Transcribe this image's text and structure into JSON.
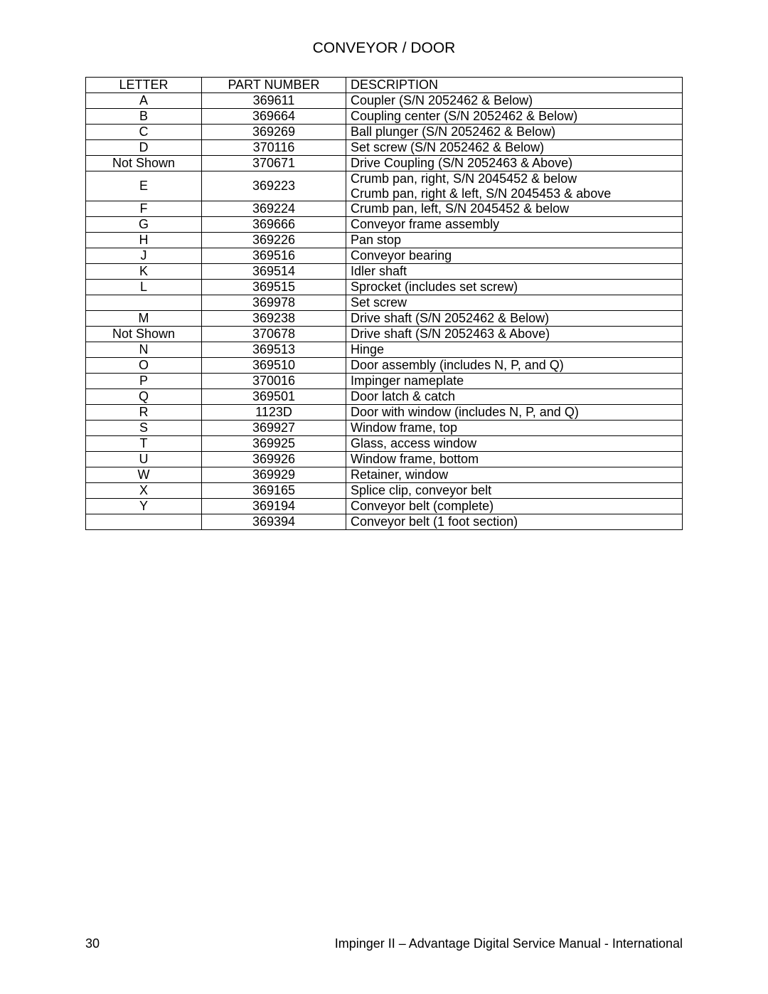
{
  "page": {
    "title": "CONVEYOR / DOOR",
    "page_number": "30",
    "manual_title": "Impinger II – Advantage Digital Service Manual - International"
  },
  "table": {
    "header": {
      "letter": "LETTER",
      "part_number": "PART NUMBER",
      "description": "DESCRIPTION"
    },
    "rows": [
      {
        "letter": "A",
        "part": "369611",
        "desc": "Coupler (S/N 2052462 & Below)"
      },
      {
        "letter": "B",
        "part": "369664",
        "desc": "Coupling center (S/N 2052462 & Below)"
      },
      {
        "letter": "C",
        "part": "369269",
        "desc": "Ball plunger (S/N 2052462 & Below)"
      },
      {
        "letter": "D",
        "part": "370116",
        "desc": "Set screw (S/N 2052462 & Below)"
      },
      {
        "letter": "Not Shown",
        "part": "370671",
        "desc": "Drive Coupling (S/N 2052463 & Above)"
      },
      {
        "letter": "E",
        "part": "369223",
        "multi": true,
        "desc_lines": [
          "Crumb pan, right, S/N 2045452 & below",
          "Crumb pan, right & left, S/N 2045453 & above"
        ]
      },
      {
        "letter": "F",
        "part": "369224",
        "desc": "Crumb pan, left, S/N 2045452 & below"
      },
      {
        "letter": "G",
        "part": "369666",
        "desc": "Conveyor frame assembly"
      },
      {
        "letter": "H",
        "part": "369226",
        "desc": "Pan stop"
      },
      {
        "letter": "J",
        "part": "369516",
        "desc": "Conveyor bearing"
      },
      {
        "letter": "K",
        "part": "369514",
        "desc": "Idler shaft"
      },
      {
        "letter": "L",
        "part": "369515",
        "desc": "Sprocket (includes set screw)"
      },
      {
        "letter": "",
        "part": "369978",
        "desc": "Set screw"
      },
      {
        "letter": "M",
        "part": "369238",
        "desc": "Drive shaft (S/N 2052462 & Below)"
      },
      {
        "letter": "Not Shown",
        "part": "370678",
        "desc": "Drive shaft (S/N 2052463 & Above)"
      },
      {
        "letter": "N",
        "part": "369513",
        "desc": "Hinge"
      },
      {
        "letter": "O",
        "part": "369510",
        "desc": "Door assembly (includes N, P, and Q)"
      },
      {
        "letter": "P",
        "part": "370016",
        "desc": "Impinger nameplate"
      },
      {
        "letter": "Q",
        "part": "369501",
        "desc": "Door latch & catch"
      },
      {
        "letter": "R",
        "part": "1123D",
        "desc": "Door with window (includes N, P, and Q)"
      },
      {
        "letter": "S",
        "part": "369927",
        "desc": "Window frame, top"
      },
      {
        "letter": "T",
        "part": "369925",
        "desc": "Glass, access window"
      },
      {
        "letter": "U",
        "part": "369926",
        "desc": "Window frame, bottom"
      },
      {
        "letter": "W",
        "part": "369929",
        "desc": "Retainer, window"
      },
      {
        "letter": "X",
        "part": "369165",
        "desc": "Splice clip, conveyor belt"
      },
      {
        "letter": "Y",
        "part": "369194",
        "desc": "Conveyor belt (complete)"
      },
      {
        "letter": "",
        "part": "369394",
        "desc": "Conveyor belt (1 foot section)"
      }
    ]
  }
}
